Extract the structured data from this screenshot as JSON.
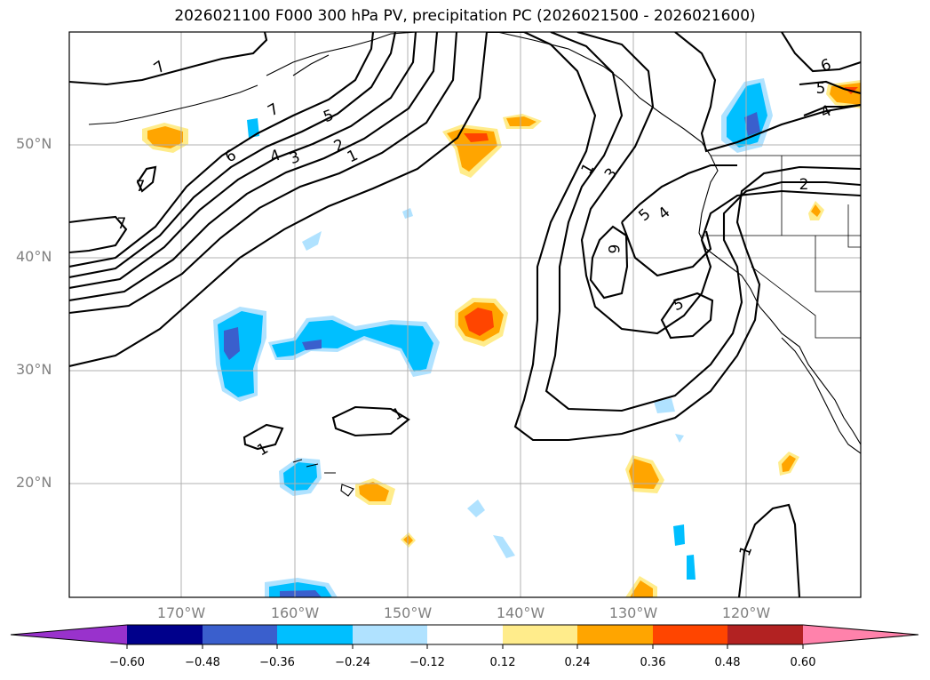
{
  "title": "2026021100 F000 300 hPa PV, precipitation PC (2026021500 - 2026021600)",
  "lat_labels": [
    "50°N",
    "40°N",
    "30°N",
    "20°N"
  ],
  "lon_labels": [
    "170°W",
    "160°W",
    "150°W",
    "140°W",
    "130°W",
    "120°W"
  ],
  "colorbar": {
    "ticks": [
      "−0.60",
      "−0.48",
      "−0.36",
      "−0.24",
      "−0.12",
      "0.12",
      "0.24",
      "0.36",
      "0.48",
      "0.60"
    ],
    "colors": [
      "#9932cc",
      "#00008b",
      "#3a5fcd",
      "#00bfff",
      "#b0e2ff",
      "#ffffff",
      "#ffec8b",
      "#ffa500",
      "#ff4500",
      "#b22222",
      "#ff82ab"
    ]
  },
  "contour_labels": [
    "7",
    "7",
    "6",
    "5",
    "4",
    "3",
    "2",
    "1",
    "7",
    "7",
    "1",
    "3",
    "6",
    "5",
    "4",
    "5",
    "2",
    "6",
    "5",
    "4",
    "1",
    "1",
    "1"
  ],
  "colors": {
    "pos_light": "#ffec8b",
    "pos_mid": "#ffa500",
    "pos_strong": "#ff4500",
    "neg_light": "#b0e2ff",
    "neg_mid": "#00bfff",
    "neg_strong": "#3a5fcd"
  }
}
